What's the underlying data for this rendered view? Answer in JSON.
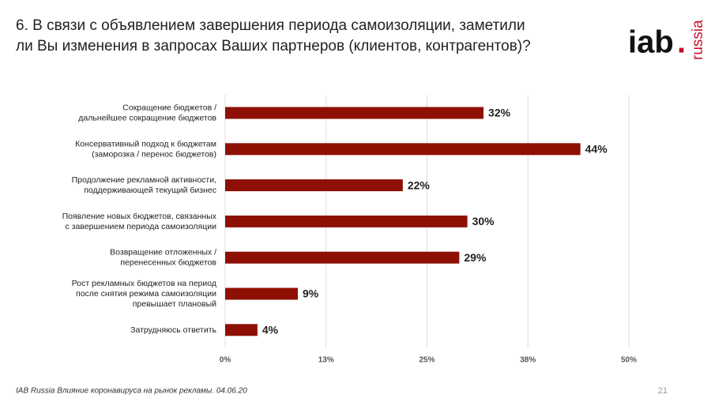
{
  "header": {
    "title_lines": [
      "6. В связи с объявлением завершения периода самоизоляции, заметили",
      "ли Вы изменения в запросах Ваших партнеров (клиентов, контрагентов)?"
    ],
    "logo_main": "iab",
    "logo_dot": ".",
    "logo_side": "russia"
  },
  "chart_data": {
    "type": "bar",
    "orientation": "horizontal",
    "categories": [
      "Сокращение бюджетов /\nдальнейшее сокращение бюджетов",
      "Консервативный подход к бюджетам\n(заморозка / перенос бюджетов)",
      "Продолжение рекламной активности,\nподдерживающей текущий бизнес",
      "Появление новых бюджетов, связанных\nс завершением периода самоизоляции",
      "Возвращение отложенных /\nперенесенных бюджетов",
      "Рост рекламных бюджетов на период\nпосле снятия режима самоизоляции\nпревышает плановый",
      "Затрудняюсь ответить"
    ],
    "values": [
      32,
      44,
      22,
      30,
      29,
      9,
      4
    ],
    "value_labels": [
      "32%",
      "44%",
      "22%",
      "30%",
      "29%",
      "9%",
      "4%"
    ],
    "color": "#8e1005",
    "xlim": [
      0,
      50
    ],
    "xticks": [
      {
        "value": 0,
        "label": "0%"
      },
      {
        "value": 12.5,
        "label": "13%"
      },
      {
        "value": 25,
        "label": "25%"
      },
      {
        "value": 37.5,
        "label": "38%"
      },
      {
        "value": 50,
        "label": "50%"
      }
    ],
    "grid": true
  },
  "footer": {
    "source": "IAB Russia Влияние коронавируса на рынок рекламы. 04.06.20",
    "page": "21"
  }
}
